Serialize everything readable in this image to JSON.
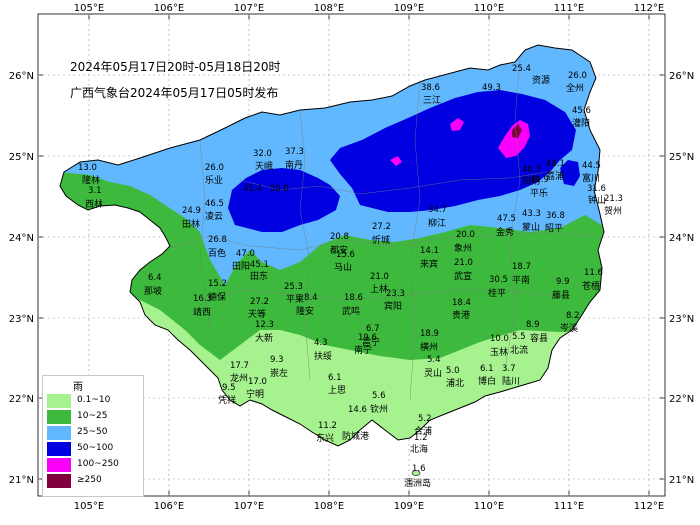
{
  "header": {
    "period": "2024年05月17日20时-05月18日20时",
    "issuer": "广西气象台2024年05月17日05时发布"
  },
  "axes": {
    "lon_labels": [
      "105°E",
      "106°E",
      "107°E",
      "108°E",
      "109°E",
      "110°E",
      "111°E",
      "112°E"
    ],
    "lat_labels": [
      "26°N",
      "25°N",
      "24°N",
      "23°N",
      "22°N",
      "21°N"
    ]
  },
  "legend": {
    "title": "雨",
    "items": [
      {
        "label": "0.1~10",
        "color": "#a6f28f"
      },
      {
        "label": "10~25",
        "color": "#3dba3d"
      },
      {
        "label": "25~50",
        "color": "#61b8ff"
      },
      {
        "label": "50~100",
        "color": "#0000e1"
      },
      {
        "label": "100~250",
        "color": "#fa00fa"
      },
      {
        "label": "≥250",
        "color": "#800040"
      }
    ]
  },
  "colors": {
    "sea": "#ffffff",
    "outside": "#ffffff",
    "border": "#000000",
    "county_line": "#7a7a7a"
  },
  "stations": [
    {
      "name": "资源",
      "value": "25.4"
    },
    {
      "name": "全州",
      "value": "26.0"
    },
    {
      "name": "三江",
      "value": "38.6"
    },
    {
      "name": "49.3",
      "value": ""
    },
    {
      "name": "灌阳",
      "value": "45.6"
    },
    {
      "name": "隆林",
      "value": "13.0"
    },
    {
      "name": "乐业",
      "value": "26.0"
    },
    {
      "name": "天峨",
      "value": "32.0"
    },
    {
      "name": "南丹",
      "value": "37.3"
    },
    {
      "name": "西林",
      "value": "3.1"
    },
    {
      "name": "田林",
      "value": "24.9"
    },
    {
      "name": "凌云",
      "value": "46.5"
    },
    {
      "name": "45.4",
      "value": ""
    },
    {
      "name": "50.0",
      "value": ""
    },
    {
      "name": "富川",
      "value": "44.5"
    },
    {
      "name": "钟山",
      "value": "31.6"
    },
    {
      "name": "贺州",
      "value": "21.3"
    },
    {
      "name": "平乐",
      "value": "41.9"
    },
    {
      "name": "阳朔",
      "value": "40.7"
    },
    {
      "name": "荔浦",
      "value": "48.1"
    },
    {
      "name": "蒙山",
      "value": "43.3"
    },
    {
      "name": "昭平",
      "value": "36.8"
    },
    {
      "name": "金秀",
      "value": "47.5"
    },
    {
      "name": "百色",
      "value": "26.8"
    },
    {
      "name": "田阳",
      "value": "47.0"
    },
    {
      "name": "田东",
      "value": "45.1"
    },
    {
      "name": "都安",
      "value": "20.8"
    },
    {
      "name": "马山",
      "value": "15.6"
    },
    {
      "name": "忻城",
      "value": "27.2"
    },
    {
      "name": "柳江",
      "value": "34.7"
    },
    {
      "name": "象州",
      "value": "20.0"
    },
    {
      "name": "武宣",
      "value": "21.0"
    },
    {
      "name": "来宾",
      "value": "14.1"
    },
    {
      "name": "平南",
      "value": "18.7"
    },
    {
      "name": "桂平",
      "value": "30.5"
    },
    {
      "name": "藤县",
      "value": "9.9"
    },
    {
      "name": "苍梧",
      "value": "11.6"
    },
    {
      "name": "那坡",
      "value": "6.4"
    },
    {
      "name": "德保",
      "value": "15.2"
    },
    {
      "name": "靖西",
      "value": "16.3"
    },
    {
      "name": "天等",
      "value": "27.2"
    },
    {
      "name": "平果",
      "value": "25.3"
    },
    {
      "name": "隆安",
      "value": "8.4"
    },
    {
      "name": "武鸣",
      "value": "18.6"
    },
    {
      "name": "上林",
      "value": "21.0"
    },
    {
      "name": "宾阳",
      "value": "23.3"
    },
    {
      "name": "贵港",
      "value": "18.4"
    },
    {
      "name": "岑溪",
      "value": "8.2"
    },
    {
      "name": "容县",
      "value": "8.9"
    },
    {
      "name": "北流",
      "value": "5.5"
    },
    {
      "name": "玉林",
      "value": "10.0"
    },
    {
      "name": "大新",
      "value": "12.3"
    },
    {
      "name": "扶绥",
      "value": "4.3"
    },
    {
      "name": "邕宁",
      "value": "6.7"
    },
    {
      "name": "南宁",
      "value": "19.6"
    },
    {
      "name": "横州",
      "value": "18.9"
    },
    {
      "name": "灵山",
      "value": "5.4"
    },
    {
      "name": "浦北",
      "value": "5.0"
    },
    {
      "name": "博白",
      "value": "6.1"
    },
    {
      "name": "陆川",
      "value": "3.7"
    },
    {
      "name": "龙州",
      "value": "17.7"
    },
    {
      "name": "崇左",
      "value": "9.3"
    },
    {
      "name": "宁明",
      "value": "17.0"
    },
    {
      "name": "凭祥",
      "value": "9.5"
    },
    {
      "name": "上思",
      "value": "6.1"
    },
    {
      "name": "钦州",
      "value": "5.6"
    },
    {
      "name": "防城港",
      "value": "14.6"
    },
    {
      "name": "东兴",
      "value": "11.2"
    },
    {
      "name": "合浦",
      "value": "5.2"
    },
    {
      "name": "北海",
      "value": "1.2"
    },
    {
      "name": "涠洲岛",
      "value": "1.6"
    }
  ]
}
